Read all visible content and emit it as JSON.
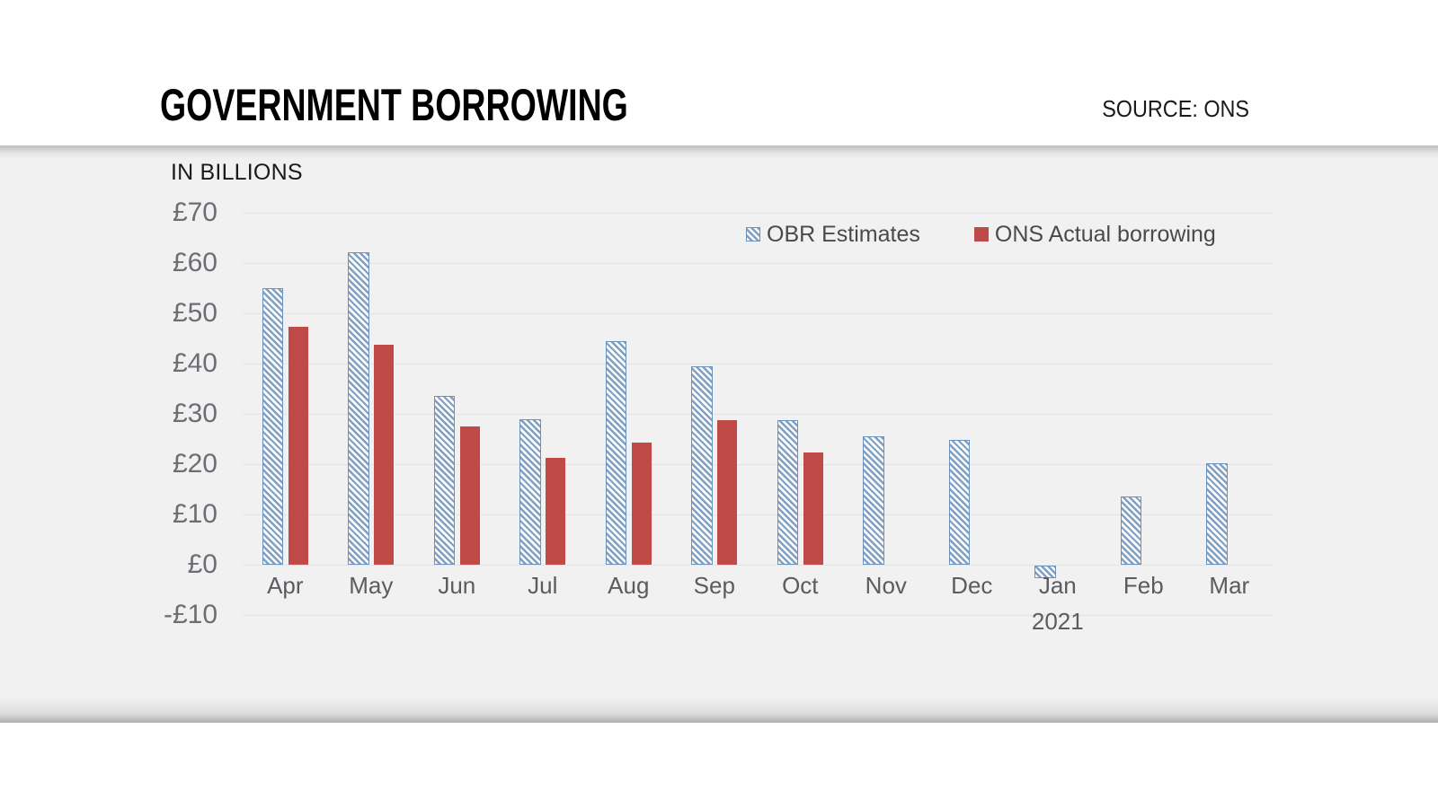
{
  "header": {
    "title": "GOVERNMENT BORROWING",
    "source": "SOURCE: ONS"
  },
  "chart_data": {
    "type": "bar",
    "title": "GOVERNMENT BORROWING",
    "unit_label": "IN BILLIONS",
    "source": "SOURCE: ONS",
    "categories": [
      "Apr",
      "May",
      "Jun",
      "Jul",
      "Aug",
      "Sep",
      "Oct",
      "Nov",
      "Dec",
      "Jan",
      "Feb",
      "Mar"
    ],
    "x_sub_label": {
      "category": "Jan",
      "text": "2021"
    },
    "series": [
      {
        "name": "OBR Estimates",
        "style": "hatched",
        "color": "#7f9fc3",
        "values": [
          55.0,
          62.2,
          33.5,
          29.0,
          44.5,
          39.5,
          28.8,
          25.6,
          24.8,
          -2.5,
          13.5,
          20.1
        ]
      },
      {
        "name": "ONS Actual borrowing",
        "style": "solid",
        "color": "#bf4a47",
        "values": [
          47.3,
          43.7,
          27.5,
          21.3,
          24.3,
          28.7,
          22.3,
          null,
          null,
          null,
          null,
          null
        ]
      }
    ],
    "ylim": [
      -10,
      70
    ],
    "ytick_step": 10,
    "ytick_prefix": "£",
    "grid": true,
    "legend_position": "top-right"
  },
  "colors": {
    "bar_red": "#bf4a47",
    "hatch_blue": "#7f9fc3",
    "hatch_border": "#6b92ba",
    "panel_bg": "#f1f1f1",
    "grid_line": "#e3e3e3",
    "axis_text_y": "#6b6e72",
    "axis_text_x": "#595c60",
    "legend_text": "#4a4a4a",
    "title_text": "#000000"
  }
}
